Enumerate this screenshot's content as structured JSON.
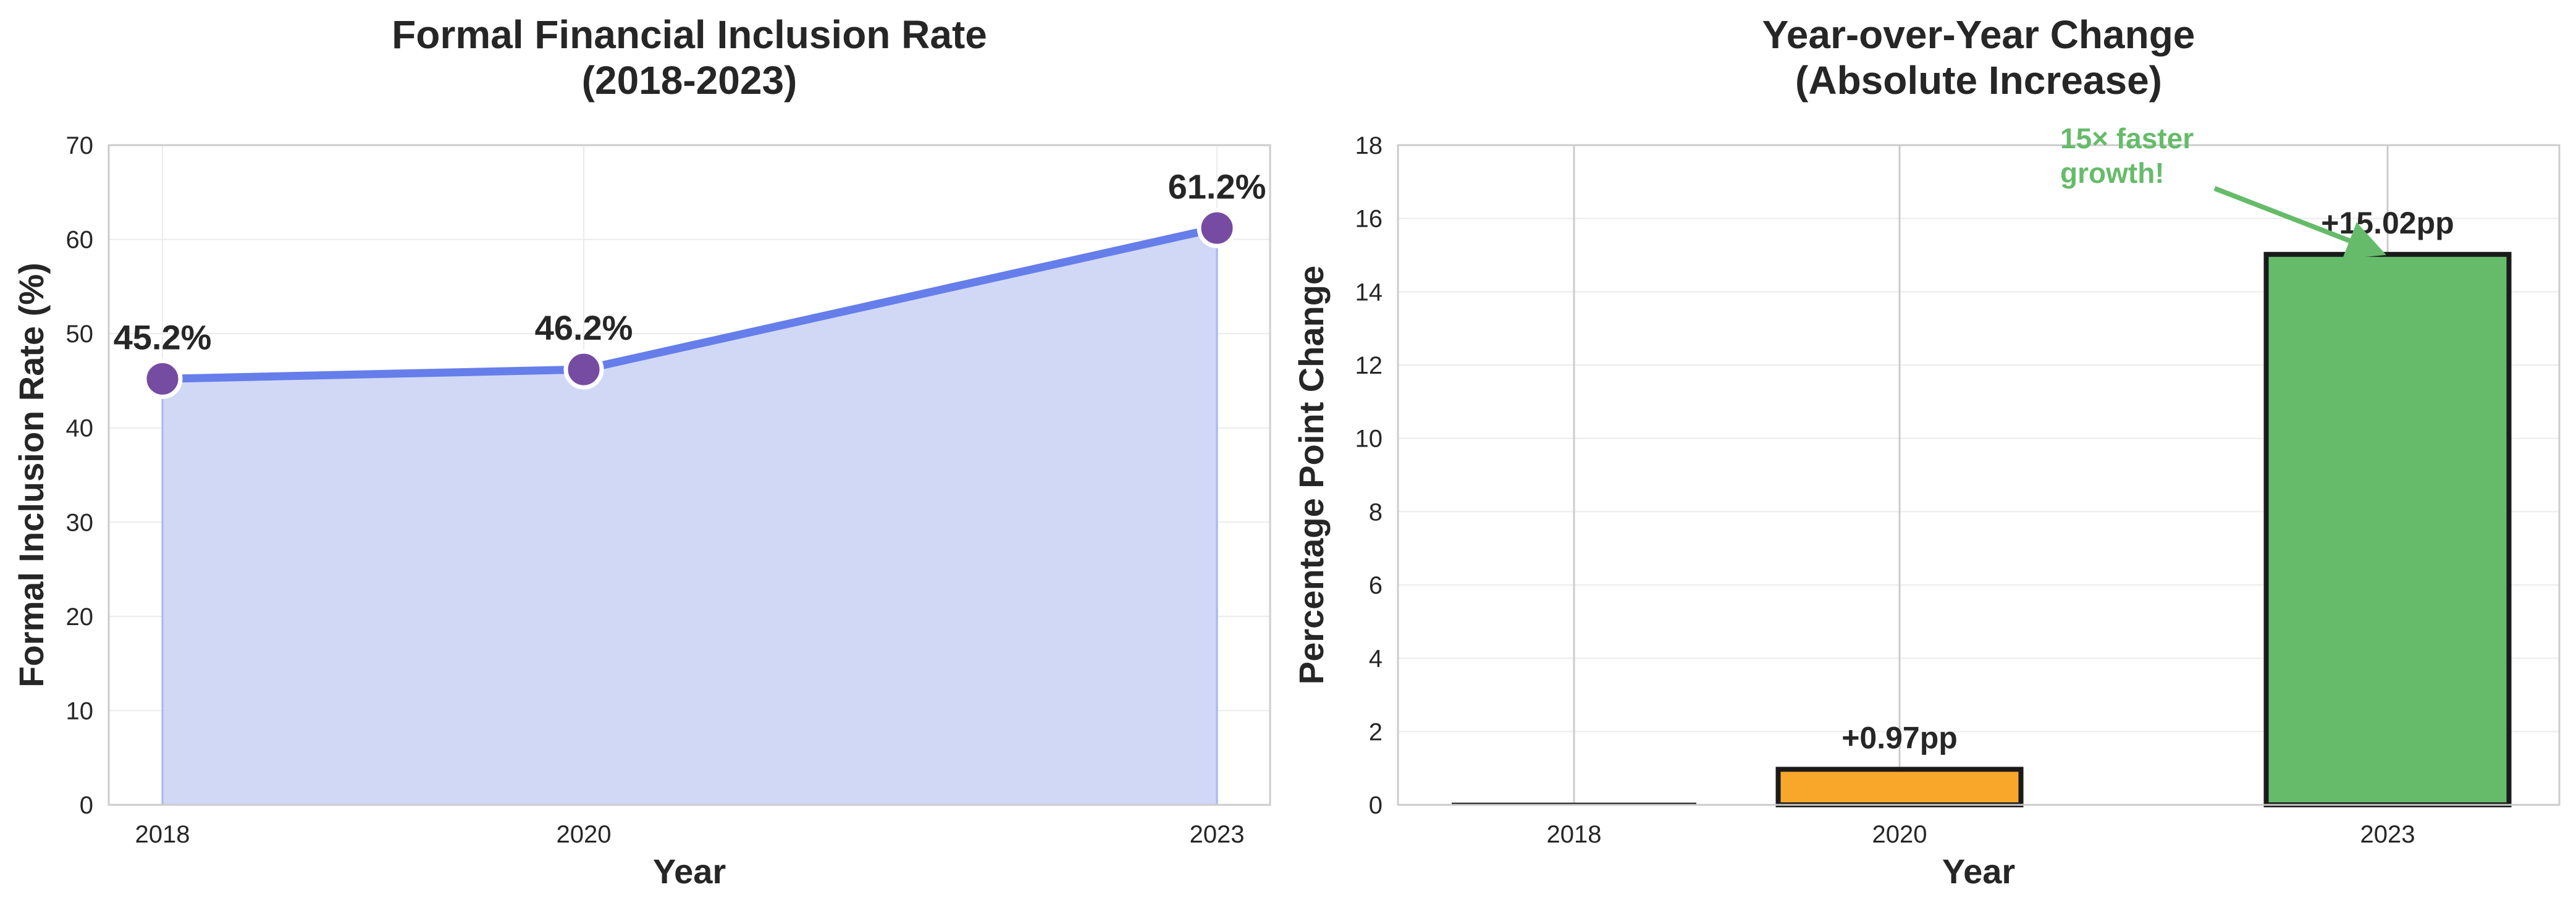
{
  "chart_data": [
    {
      "type": "area",
      "title": [
        "Formal Financial Inclusion Rate",
        "(2018-2023)"
      ],
      "xlabel": "Year",
      "ylabel": "Formal Inclusion Rate (%)",
      "x": [
        2018,
        2020,
        2023
      ],
      "x_ticks": [
        "2018",
        "2020",
        "2023"
      ],
      "values": [
        45.2,
        46.2,
        61.2
      ],
      "data_labels": [
        "45.2%",
        "46.2%",
        "61.2%"
      ],
      "ylim": [
        0,
        70
      ],
      "y_ticks": [
        "0",
        "10",
        "20",
        "30",
        "40",
        "50",
        "60",
        "70"
      ],
      "grid": true,
      "line_color": "#667eea",
      "marker_color": "#764ba2",
      "fill_color": "#cdd6f6"
    },
    {
      "type": "bar",
      "title": [
        "Year-over-Year Change",
        "(Absolute Increase)"
      ],
      "xlabel": "Year",
      "ylabel": "Percentage Point Change",
      "categories": [
        "2018",
        "2020",
        "2023"
      ],
      "values": [
        0,
        0.97,
        15.02
      ],
      "data_labels": [
        "",
        "+0.97pp",
        "+15.02pp"
      ],
      "colors": [
        "#999999",
        "#f9a72b",
        "#66bb6a"
      ],
      "ylim": [
        0,
        18
      ],
      "y_ticks": [
        "0",
        "2",
        "4",
        "6",
        "8",
        "10",
        "12",
        "14",
        "16",
        "18"
      ],
      "grid": true,
      "annotation": {
        "text": [
          "15× faster",
          "growth!"
        ],
        "color": "#66bb6a"
      }
    }
  ]
}
